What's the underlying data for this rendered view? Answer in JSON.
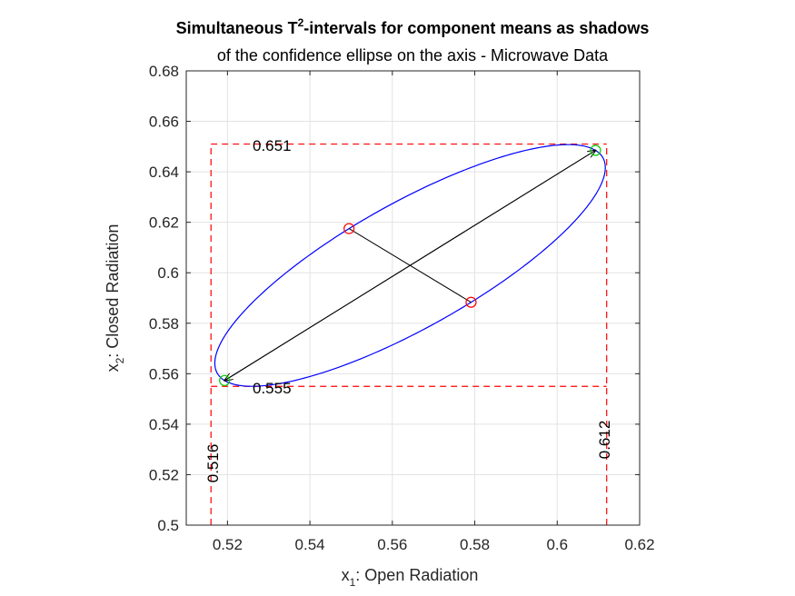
{
  "chart_data": {
    "type": "line",
    "title_line1_prefix": "Simultaneous T",
    "title_line1_sup": "2",
    "title_line1_suffix": "-intervals for component means as shadows",
    "title_line2": "of the confidence ellipse  on the axis - Microwave Data",
    "xlabel_prefix": "x",
    "xlabel_sub": "1",
    "xlabel_suffix": ": Open Radiation",
    "ylabel_prefix": "x",
    "ylabel_sub": "2",
    "ylabel_suffix": ": Closed Radiation",
    "xlim": [
      0.51,
      0.62
    ],
    "ylim": [
      0.5,
      0.68
    ],
    "xticks": [
      0.52,
      0.54,
      0.56,
      0.58,
      0.6,
      0.62
    ],
    "yticks": [
      0.5,
      0.52,
      0.54,
      0.56,
      0.58,
      0.6,
      0.62,
      0.64,
      0.66,
      0.68
    ],
    "xtick_labels": [
      "0.52",
      "0.54",
      "0.56",
      "0.58",
      "0.6",
      "0.62"
    ],
    "ytick_labels": [
      "0.5",
      "0.52",
      "0.54",
      "0.56",
      "0.58",
      "0.6",
      "0.62",
      "0.64",
      "0.66",
      "0.68"
    ],
    "grid": true,
    "ellipse": {
      "color": "#0000ff",
      "center": [
        0.5643,
        0.6029
      ],
      "major_axis_end_1": [
        0.6093,
        0.6485
      ],
      "major_axis_end_2": [
        0.5193,
        0.5573
      ],
      "minor_axis_end_1": [
        0.5495,
        0.6175
      ],
      "minor_axis_end_2": [
        0.5791,
        0.5883
      ]
    },
    "major_axis_arrow_color": "#000000",
    "minor_axis_line_color": "#000000",
    "minor_axis_markers_color": "#ff0000",
    "major_axis_markers_color": "#00cc00",
    "simultaneous_intervals": {
      "color": "#ff0000",
      "x1": {
        "lower": 0.516,
        "upper": 0.612
      },
      "x2": {
        "lower": 0.555,
        "upper": 0.651
      }
    },
    "interval_labels": {
      "x1_lower": "0.516",
      "x1_upper": "0.612",
      "x2_lower": "0.555",
      "x2_upper": "0.651"
    }
  }
}
